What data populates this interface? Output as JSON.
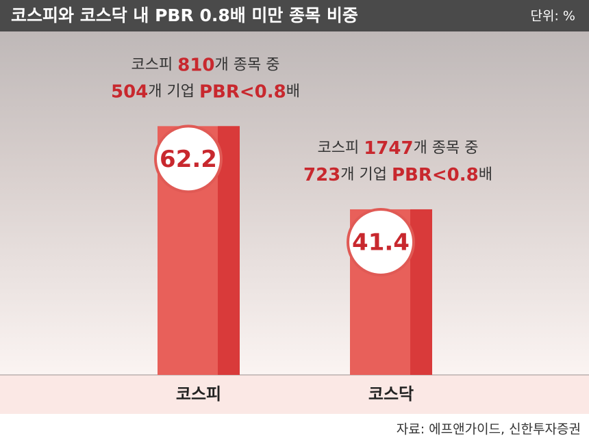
{
  "chart_data": {
    "type": "bar",
    "title": "코스피와 코스닥 내 PBR 0.8배 미만 종목 비중",
    "unit": "단위: %",
    "categories": [
      "코스피",
      "코스닥"
    ],
    "values": [
      62.2,
      41.4
    ],
    "color": "#e8605a",
    "ylim": [
      0,
      65
    ],
    "annotations": [
      [
        [
          {
            "text": "코스피 ",
            "color": "#333333"
          },
          {
            "text": "810",
            "color": "#c8282e"
          },
          {
            "text": "개 종목 중",
            "color": "#333333"
          }
        ],
        [
          {
            "text": "504",
            "color": "#c8282e"
          },
          {
            "text": "개 기업 ",
            "color": "#333333"
          },
          {
            "text": "PBR<0.8",
            "color": "#c8282e"
          },
          {
            "text": "배",
            "color": "#333333"
          }
        ]
      ],
      [
        [
          {
            "text": "코스피 ",
            "color": "#333333"
          },
          {
            "text": "1747",
            "color": "#c8282e"
          },
          {
            "text": "개 종목 중",
            "color": "#333333"
          }
        ],
        [
          {
            "text": "723",
            "color": "#c8282e"
          },
          {
            "text": "개 기업 ",
            "color": "#333333"
          },
          {
            "text": "PBR<0.8",
            "color": "#c8282e"
          },
          {
            "text": "배",
            "color": "#333333"
          }
        ]
      ]
    ],
    "source": "자료: 에프앤가이드, 신한투자증권"
  }
}
